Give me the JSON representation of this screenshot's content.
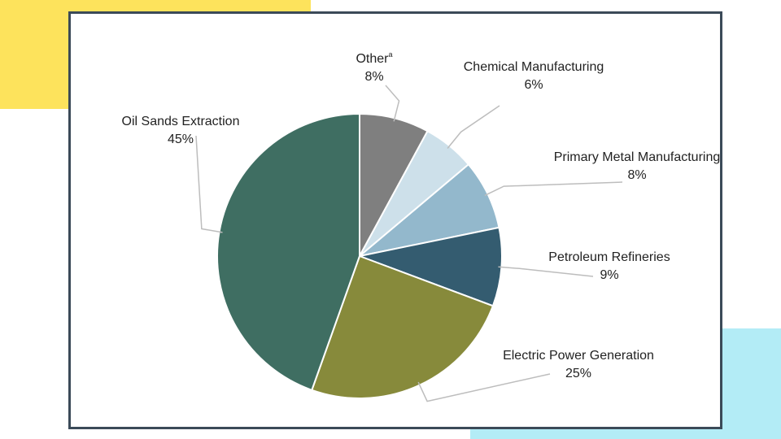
{
  "chart_data": {
    "type": "pie",
    "start_angle_deg": 0,
    "direction": "clockwise",
    "slices": [
      {
        "label": "Other",
        "superscript": "a",
        "value": 8,
        "value_label": "8%",
        "color": "#7f7f7f"
      },
      {
        "label": "Chemical Manufacturing",
        "value": 6,
        "value_label": "6%",
        "color": "#cde0ea"
      },
      {
        "label": "Primary Metal Manufacturing",
        "value": 8,
        "value_label": "8%",
        "color": "#93b8cc"
      },
      {
        "label": "Petroleum Refineries",
        "value": 9,
        "value_label": "9%",
        "color": "#345c70"
      },
      {
        "label": "Electric Power Generation",
        "value": 25,
        "value_label": "25%",
        "color": "#878a3b"
      },
      {
        "label": "Oil Sands Extraction",
        "value": 45,
        "value_label": "45%",
        "color": "#3f6e62"
      }
    ]
  },
  "decor": {
    "yellow": "#fde35c",
    "cyan": "#b3ecf6",
    "frame_border": "#3b4a58"
  }
}
